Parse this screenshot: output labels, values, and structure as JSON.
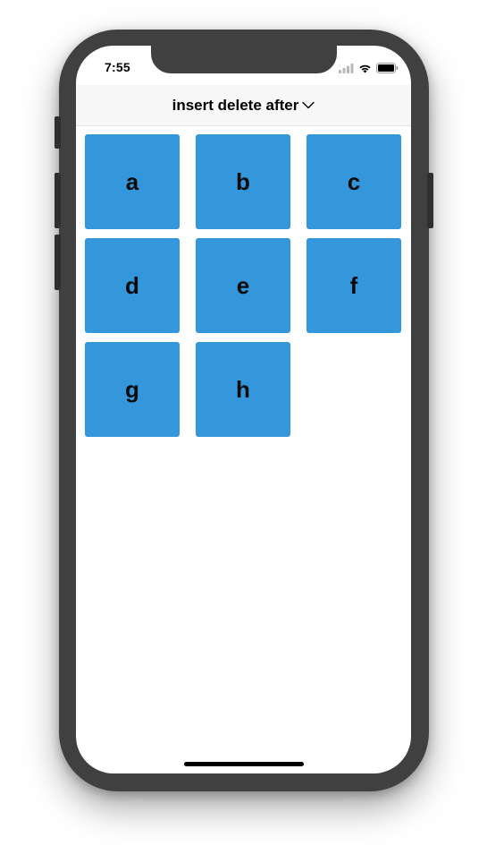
{
  "status_bar": {
    "time": "7:55",
    "icons": [
      "signal-icon",
      "wifi-icon",
      "battery-icon"
    ]
  },
  "navbar": {
    "title": "insert delete after",
    "dropdown_icon": "chevron-down-icon"
  },
  "grid": {
    "items": [
      {
        "label": "a"
      },
      {
        "label": "b"
      },
      {
        "label": "c"
      },
      {
        "label": "d"
      },
      {
        "label": "e"
      },
      {
        "label": "f"
      },
      {
        "label": "g"
      },
      {
        "label": "h"
      }
    ]
  },
  "colors": {
    "tile": "#3597db",
    "device_frame": "#404040",
    "navbar_bg": "#f7f7f7"
  }
}
